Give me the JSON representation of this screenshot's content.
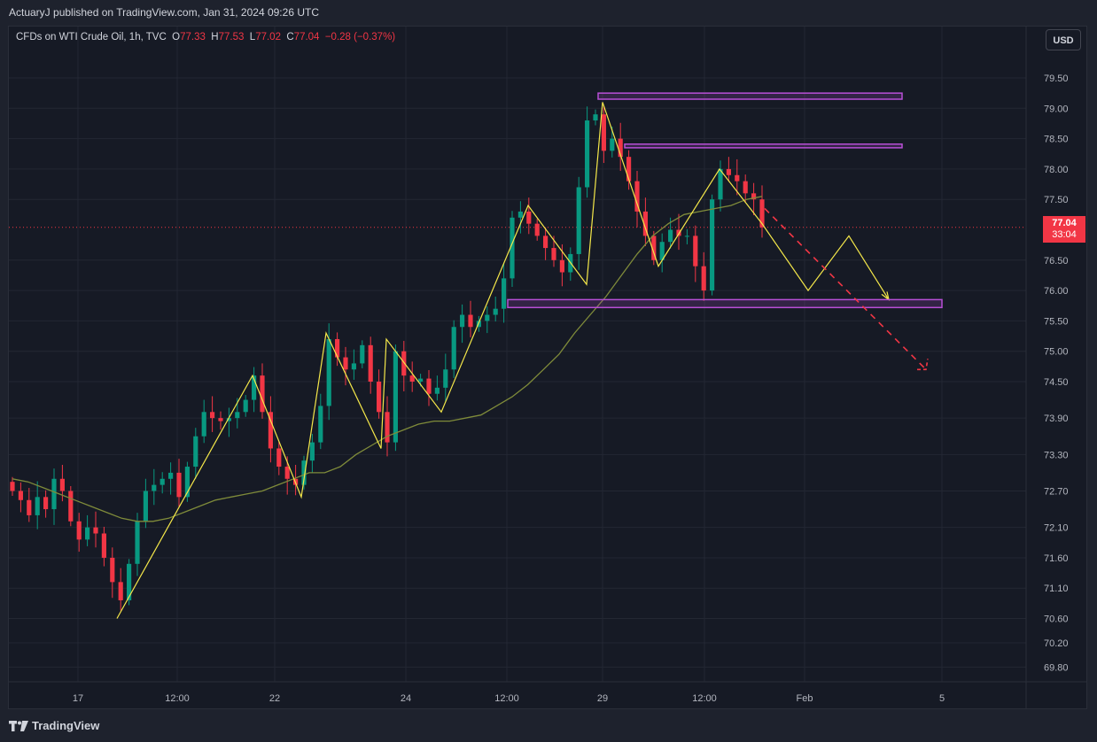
{
  "header": {
    "published": "ActuaryJ published on TradingView.com, Jan 31, 2024 09:26 UTC"
  },
  "legend": {
    "symbol": "CFDs on WTI Crude Oil, 1h, TVC",
    "o_label": "O",
    "o": "77.33",
    "h_label": "H",
    "h": "77.53",
    "l_label": "L",
    "l": "77.02",
    "c_label": "C",
    "c": "77.04",
    "change": "−0.28 (−0.37%)"
  },
  "toolbar": {
    "currency": "USD"
  },
  "price_tag": {
    "price": "77.04",
    "countdown": "33:04"
  },
  "footer": {
    "brand": "TradingView"
  },
  "colors": {
    "background": "#161a25",
    "up": "#089981",
    "down": "#f23645",
    "moving_average": "#7f8b3a",
    "pattern": "#f5e84a",
    "zone": "#b84fd6",
    "projection": "#f23645"
  },
  "chart_data": {
    "type": "candlestick",
    "y_ticks": [
      "79.50",
      "79.00",
      "78.50",
      "78.00",
      "77.50",
      "77.04",
      "76.50",
      "76.00",
      "75.50",
      "75.00",
      "74.50",
      "73.90",
      "73.30",
      "72.70",
      "72.10",
      "71.60",
      "71.10",
      "70.60",
      "70.20",
      "69.80"
    ],
    "x_ticks": [
      "17",
      "12:00",
      "22",
      "24",
      "12:00",
      "29",
      "12:00",
      "Feb",
      "5"
    ],
    "last_price": 77.04,
    "candle_closes": [
      72.7,
      72.55,
      72.3,
      72.6,
      72.4,
      72.9,
      72.7,
      72.2,
      71.9,
      72.1,
      72.0,
      71.6,
      71.2,
      70.9,
      71.5,
      72.2,
      72.7,
      72.8,
      72.9,
      73.0,
      72.6,
      73.1,
      73.6,
      74.0,
      73.9,
      73.85,
      73.9,
      74.0,
      74.2,
      74.6,
      74.0,
      73.4,
      73.1,
      72.9,
      72.8,
      73.2,
      73.5,
      74.1,
      75.2,
      74.9,
      74.7,
      74.8,
      75.1,
      74.5,
      74.0,
      73.5,
      75.0,
      74.6,
      74.5,
      74.55,
      74.3,
      74.4,
      74.7,
      75.4,
      75.6,
      75.4,
      75.5,
      75.6,
      75.7,
      76.2,
      77.2,
      77.3,
      77.1,
      76.9,
      76.7,
      76.5,
      76.3,
      76.6,
      77.7,
      78.8,
      78.9,
      78.3,
      78.5,
      78.2,
      77.8,
      77.3,
      76.9,
      76.5,
      76.8,
      77.0,
      76.9,
      76.9,
      76.4,
      76.0,
      77.5,
      78.0,
      77.9,
      77.8,
      77.6,
      77.5,
      77.04
    ],
    "moving_average": [
      72.9,
      72.85,
      72.75,
      72.65,
      72.55,
      72.45,
      72.35,
      72.25,
      72.2,
      72.2,
      72.25,
      72.35,
      72.45,
      72.55,
      72.6,
      72.65,
      72.7,
      72.8,
      72.9,
      73.0,
      73.0,
      73.1,
      73.3,
      73.45,
      73.6,
      73.7,
      73.8,
      73.85,
      73.85,
      73.9,
      73.95,
      74.1,
      74.25,
      74.45,
      74.7,
      74.95,
      75.3,
      75.6,
      75.9,
      76.25,
      76.6,
      76.9,
      77.1,
      77.25,
      77.3,
      77.35,
      77.4,
      77.5,
      77.55
    ],
    "pattern_points": [
      70.6,
      74.6,
      72.6,
      75.3,
      73.4,
      75.2,
      74.0,
      77.4,
      76.1,
      79.1,
      76.4,
      78.0,
      77.1,
      76.0,
      76.9,
      75.85
    ],
    "resistance_zones": [
      {
        "top": 79.25,
        "bottom": 79.15
      },
      {
        "top": 78.41,
        "bottom": 78.35
      },
      {
        "top": 75.85,
        "bottom": 75.72
      }
    ],
    "projection": {
      "start": 77.35,
      "end": 74.7
    }
  }
}
